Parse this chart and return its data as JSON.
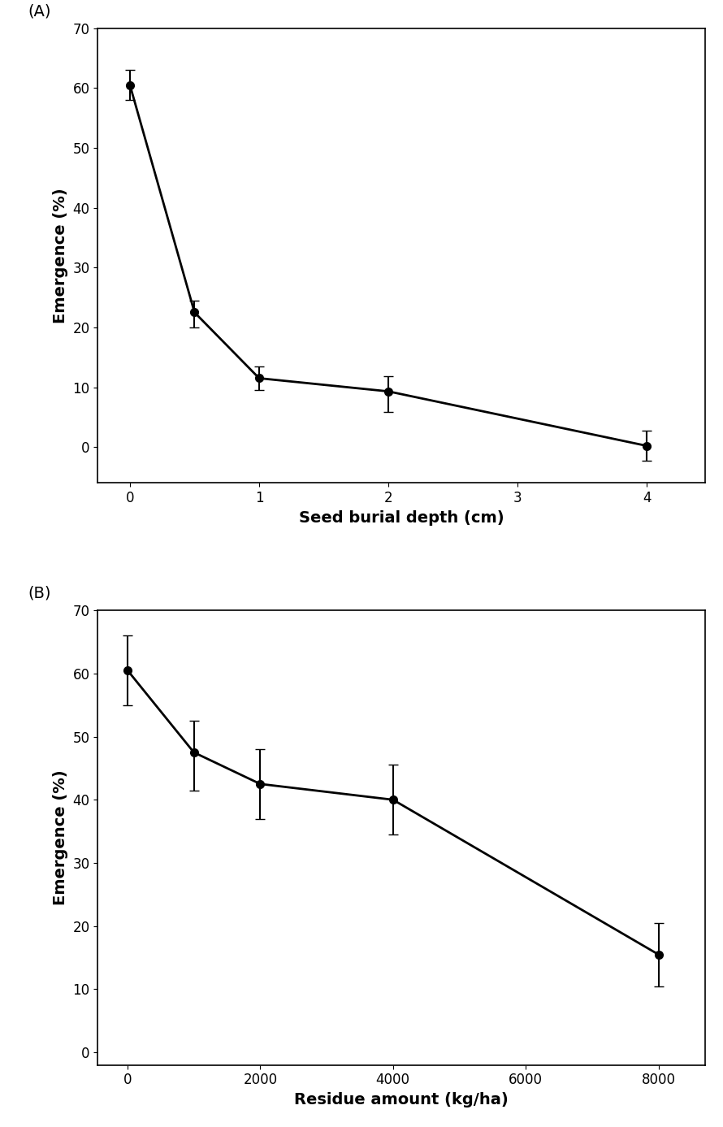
{
  "panel_A": {
    "x": [
      0,
      0.5,
      1,
      2,
      4
    ],
    "y": [
      60.5,
      22.5,
      11.5,
      9.3,
      0.2
    ],
    "yerr_upper": [
      2.5,
      2.0,
      2.0,
      2.5,
      2.5
    ],
    "yerr_lower": [
      2.5,
      2.5,
      2.0,
      3.5,
      2.5
    ],
    "xlabel": "Seed burial depth (cm)",
    "ylabel": "Emergence (%)",
    "xlim": [
      -0.25,
      4.45
    ],
    "ylim": [
      -6,
      70
    ],
    "xticks": [
      0,
      1,
      2,
      3,
      4
    ],
    "yticks": [
      0,
      10,
      20,
      30,
      40,
      50,
      60,
      70
    ],
    "label": "(A)"
  },
  "panel_B": {
    "x": [
      0,
      1000,
      2000,
      4000,
      8000
    ],
    "y": [
      60.5,
      47.5,
      42.5,
      40.0,
      15.5
    ],
    "yerr_upper": [
      5.5,
      5.0,
      5.5,
      5.5,
      5.0
    ],
    "yerr_lower": [
      5.5,
      6.0,
      5.5,
      5.5,
      5.0
    ],
    "xlabel": "Residue amount (kg/ha)",
    "ylabel": "Emergence (%)",
    "xlim": [
      -450,
      8700
    ],
    "ylim": [
      -2,
      70
    ],
    "xticks": [
      0,
      2000,
      4000,
      6000,
      8000
    ],
    "yticks": [
      0,
      10,
      20,
      30,
      40,
      50,
      60,
      70
    ],
    "label": "(B)"
  },
  "marker_size": 7,
  "linewidth": 2.0,
  "capsize": 4,
  "elinewidth": 1.5,
  "marker_color": "black",
  "line_color": "black",
  "font_size_label": 14,
  "font_size_tick": 12,
  "font_size_panel": 14
}
